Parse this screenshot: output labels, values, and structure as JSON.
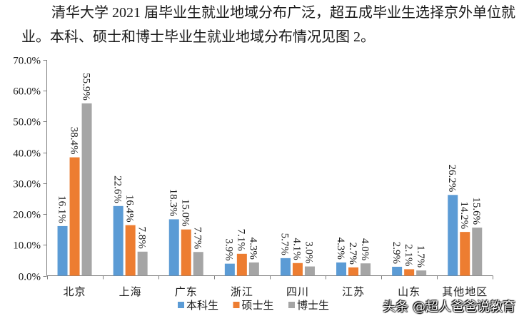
{
  "paragraph": {
    "line1": "清华大学 2021 届毕业生就业地域分布广泛，超五成毕业生选择京外单位就",
    "line2": "业。本科、硕士和博士毕业生就业地域分布情况见图 2。"
  },
  "chart_data": {
    "type": "bar",
    "categories": [
      "北京",
      "上海",
      "广东",
      "浙江",
      "四川",
      "江苏",
      "山东",
      "其他地区"
    ],
    "series": [
      {
        "name": "本科生",
        "color": "#5B9BD5",
        "values": [
          16.1,
          22.6,
          18.3,
          3.9,
          5.7,
          4.3,
          2.9,
          26.2
        ],
        "labels": [
          "16.1%",
          "22.6%",
          "18.3%",
          "3.9%",
          "5.7%",
          "4.3%",
          "2.9%",
          "26.2%"
        ]
      },
      {
        "name": "硕士生",
        "color": "#ED7D31",
        "values": [
          38.4,
          16.4,
          15.0,
          7.1,
          4.1,
          2.7,
          2.1,
          14.2
        ],
        "labels": [
          "38.4%",
          "16.4%",
          "15.0%",
          "7.1%",
          "4.1%",
          "2.7%",
          "2.1%",
          "14.2%"
        ]
      },
      {
        "name": "博士生",
        "color": "#A5A5A5",
        "values": [
          55.9,
          7.8,
          7.7,
          4.3,
          3.0,
          4.0,
          1.7,
          15.6
        ],
        "labels": [
          "55.9%",
          "7.8%",
          "7.7%",
          "4.3%",
          "3.0%",
          "4.0%",
          "1.7%",
          "15.6%"
        ]
      }
    ],
    "ylim": [
      0,
      70
    ],
    "yticks": [
      0,
      10,
      20,
      30,
      40,
      50,
      60,
      70
    ],
    "ytick_labels": [
      "0.0%",
      "10.0%",
      "20.0%",
      "30.0%",
      "40.0%",
      "50.0%",
      "60.0%",
      "70.0%"
    ],
    "grid": false,
    "legend": "bottom"
  },
  "watermark": "头条 @超人爸爸说教育"
}
